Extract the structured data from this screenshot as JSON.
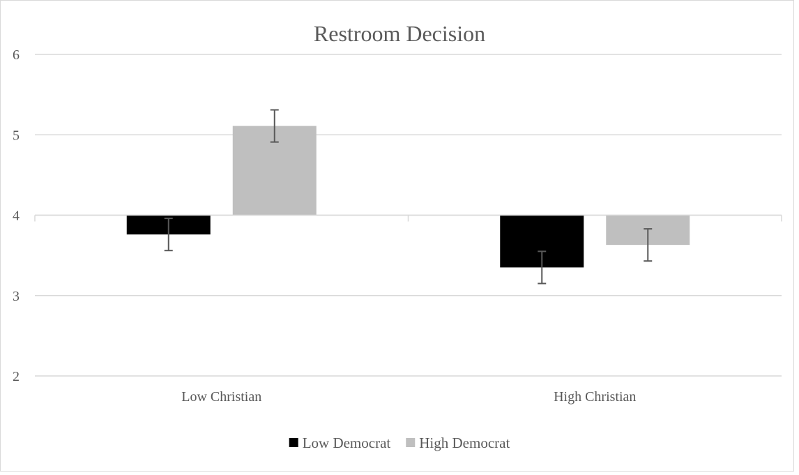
{
  "chart_data": {
    "type": "bar",
    "title": "Restroom Decision",
    "categories": [
      "Low Christian",
      "High Christian"
    ],
    "baseline": 4,
    "ylim": [
      2,
      6
    ],
    "yticks": [
      2,
      3,
      4,
      5,
      6
    ],
    "grid": true,
    "legend_position": "bottom",
    "series": [
      {
        "name": "Low Democrat",
        "color": "#000000",
        "values": [
          3.76,
          3.35
        ],
        "error": [
          0.2,
          0.2
        ]
      },
      {
        "name": "High Democrat",
        "color": "#bfbfbf",
        "values": [
          5.11,
          3.63
        ],
        "error": [
          0.2,
          0.2
        ]
      }
    ],
    "colors": {
      "grid": "#d9d9d9",
      "text": "#595959",
      "error_bar": "#595959"
    }
  }
}
